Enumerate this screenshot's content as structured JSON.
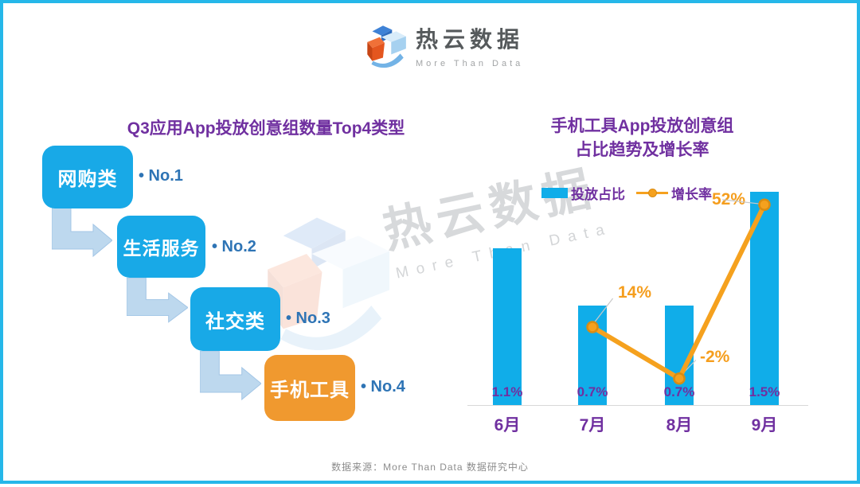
{
  "header": {
    "brand_cn": "热云数据",
    "brand_en": "More Than Data"
  },
  "left_panel": {
    "title": "Q3应用App投放创意组数量Top4类型",
    "steps": [
      {
        "label": "网购类",
        "rank_label": "• No.1",
        "color": "#18a9e7"
      },
      {
        "label": "生活服务",
        "rank_label": "• No.2",
        "color": "#18a9e7"
      },
      {
        "label": "社交类",
        "rank_label": "• No.3",
        "color": "#18a9e7"
      },
      {
        "label": "手机工具",
        "rank_label": "• No.4",
        "color": "#f0992f"
      }
    ]
  },
  "right_panel": {
    "title_line1": "手机工具App投放创意组",
    "title_line2": "占比趋势及增长率",
    "legend": [
      {
        "label": "投放占比",
        "marker": "bar-swatch",
        "color": "#10ade9"
      },
      {
        "label": "增长率",
        "marker": "line-marker",
        "color": "#f5a11e"
      }
    ]
  },
  "chart_data": {
    "type": "bar",
    "subtype": "combo-bar-line",
    "title": "手机工具App投放创意组占比趋势及增长率",
    "categories": [
      "6月",
      "7月",
      "8月",
      "9月"
    ],
    "series": [
      {
        "name": "投放占比",
        "chart": "bar",
        "unit": "%",
        "color": "#10ade9",
        "values": [
          1.1,
          0.7,
          0.7,
          1.5
        ],
        "labels": [
          "1.1%",
          "0.7%",
          "0.7%",
          "1.5%"
        ]
      },
      {
        "name": "增长率",
        "chart": "line",
        "unit": "%",
        "color": "#f5a11e",
        "values": [
          null,
          14,
          -2,
          52
        ],
        "labels": [
          "14%",
          "-2%",
          "52%"
        ]
      }
    ],
    "legend_position": "top",
    "grid": false,
    "bar_axis_min": 0
  },
  "watermark": {
    "cn": "热云数据",
    "en": "More Than Data"
  },
  "footer": {
    "source": "数据来源：More Than Data 数据研究中心"
  }
}
